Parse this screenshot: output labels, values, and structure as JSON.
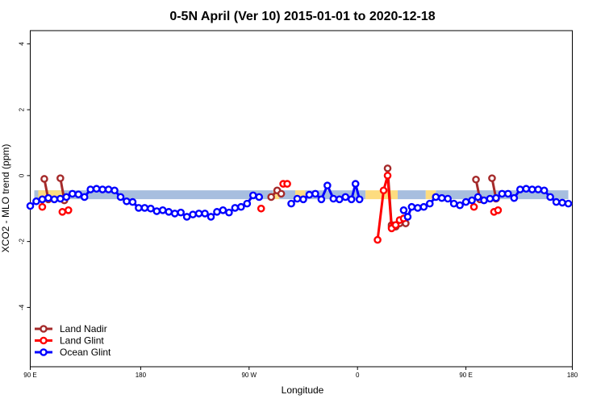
{
  "chart_data": {
    "type": "line",
    "title": "0-5N April (Ver 10)   2015-01-01 to 2020-12-18",
    "xlabel": "Longitude",
    "ylabel": "XCO2 - MLO trend (ppm)",
    "xlim": [
      -90,
      180
    ],
    "ylim": [
      -5.8,
      4.4
    ],
    "x_ticks": [
      {
        "value": -90,
        "label": "90 E"
      },
      {
        "value": -35,
        "label": "180"
      },
      {
        "value": 19,
        "label": "90 W"
      },
      {
        "value": 73,
        "label": "0"
      },
      {
        "value": 127,
        "label": "90 E"
      },
      {
        "value": 180,
        "label": "180"
      }
    ],
    "y_ticks": [
      -4,
      -2,
      0,
      2,
      4
    ],
    "grid": false,
    "legend_position": "bottom-left",
    "bands": [
      {
        "color": "#a7bedf",
        "segments": [
          [
            -88,
            -0.58,
            31,
            -0.58
          ],
          [
            34,
            -0.58,
            42,
            -0.58
          ],
          [
            47,
            -0.58,
            77,
            -0.58
          ],
          [
            93,
            -0.58,
            107,
            -0.58
          ],
          [
            112,
            -0.58,
            178,
            -0.58
          ]
        ]
      },
      {
        "color": "#fddc7f",
        "segments": [
          [
            -86,
            -0.58,
            -74,
            -0.58
          ],
          [
            31,
            -0.58,
            34,
            -0.58
          ],
          [
            42,
            -0.58,
            47,
            -0.58
          ],
          [
            77,
            -0.58,
            93,
            -0.58
          ],
          [
            107,
            -0.58,
            112,
            -0.58
          ]
        ]
      }
    ],
    "series": [
      {
        "name": "Land Nadir",
        "color": "#a52a2a",
        "segments": [
          [
            [
              -83,
              -0.1
            ],
            [
              -81,
              -0.72
            ]
          ],
          [
            [
              -75,
              -0.08
            ],
            [
              -73,
              -0.75
            ]
          ],
          [
            [
              30,
              -0.65
            ],
            [
              33,
              -0.45
            ],
            [
              35,
              -0.55
            ]
          ],
          [
            [
              88,
              0.22
            ],
            [
              90,
              -1.55
            ],
            [
              92,
              -1.55
            ]
          ],
          [
            [
              90,
              -1.5
            ],
            [
              94,
              -1.45
            ],
            [
              97,
              -1.45
            ]
          ],
          [
            [
              132,
              -0.12
            ],
            [
              134,
              -0.72
            ]
          ],
          [
            [
              140,
              -0.08
            ],
            [
              142,
              -0.7
            ]
          ]
        ]
      },
      {
        "name": "Land Glint",
        "color": "#ff0000",
        "segments": [
          [
            [
              -84,
              -0.95
            ]
          ],
          [
            [
              -74,
              -1.1
            ],
            [
              -71,
              -1.05
            ]
          ],
          [
            [
              25,
              -1.0
            ]
          ],
          [
            [
              36,
              -0.25
            ],
            [
              38,
              -0.25
            ]
          ],
          [
            [
              83,
              -1.95
            ],
            [
              86,
              -0.45
            ],
            [
              88,
              0.0
            ],
            [
              90,
              -1.6
            ],
            [
              92,
              -1.5
            ],
            [
              94,
              -1.35
            ],
            [
              96,
              -1.3
            ]
          ],
          [
            [
              131,
              -0.95
            ]
          ],
          [
            [
              141,
              -1.1
            ],
            [
              143,
              -1.05
            ]
          ]
        ]
      },
      {
        "name": "Ocean Glint",
        "color": "#0000ff",
        "segments": [
          [
            [
              -90,
              -0.92
            ],
            [
              -87,
              -0.78
            ],
            [
              -84,
              -0.72
            ],
            [
              -81,
              -0.68
            ],
            [
              -78,
              -0.72
            ],
            [
              -75,
              -0.7
            ],
            [
              -72,
              -0.65
            ],
            [
              -69,
              -0.55
            ],
            [
              -66,
              -0.57
            ],
            [
              -63,
              -0.65
            ],
            [
              -60,
              -0.42
            ],
            [
              -57,
              -0.4
            ],
            [
              -54,
              -0.42
            ],
            [
              -51,
              -0.42
            ],
            [
              -48,
              -0.45
            ],
            [
              -45,
              -0.65
            ],
            [
              -42,
              -0.78
            ],
            [
              -39,
              -0.8
            ],
            [
              -36,
              -0.98
            ],
            [
              -33,
              -0.98
            ],
            [
              -30,
              -1.0
            ],
            [
              -27,
              -1.08
            ],
            [
              -24,
              -1.05
            ],
            [
              -21,
              -1.1
            ],
            [
              -18,
              -1.15
            ],
            [
              -15,
              -1.12
            ],
            [
              -12,
              -1.25
            ],
            [
              -9,
              -1.18
            ],
            [
              -6,
              -1.15
            ],
            [
              -3,
              -1.15
            ],
            [
              0,
              -1.25
            ],
            [
              3,
              -1.1
            ],
            [
              6,
              -1.05
            ],
            [
              9,
              -1.12
            ],
            [
              12,
              -0.98
            ],
            [
              15,
              -0.95
            ],
            [
              18,
              -0.85
            ],
            [
              21,
              -0.6
            ],
            [
              24,
              -0.65
            ]
          ],
          [
            [
              40,
              -0.85
            ],
            [
              43,
              -0.7
            ],
            [
              46,
              -0.72
            ],
            [
              49,
              -0.58
            ],
            [
              52,
              -0.55
            ],
            [
              55,
              -0.72
            ],
            [
              58,
              -0.3
            ],
            [
              61,
              -0.7
            ],
            [
              64,
              -0.72
            ],
            [
              67,
              -0.65
            ],
            [
              70,
              -0.72
            ],
            [
              72,
              -0.25
            ],
            [
              74,
              -0.72
            ]
          ],
          [
            [
              96,
              -1.05
            ],
            [
              98,
              -1.25
            ],
            [
              100,
              -0.95
            ],
            [
              103,
              -0.98
            ],
            [
              106,
              -0.95
            ],
            [
              109,
              -0.85
            ],
            [
              112,
              -0.65
            ],
            [
              115,
              -0.68
            ],
            [
              118,
              -0.7
            ],
            [
              121,
              -0.85
            ],
            [
              124,
              -0.9
            ],
            [
              127,
              -0.8
            ],
            [
              130,
              -0.75
            ],
            [
              133,
              -0.65
            ],
            [
              136,
              -0.75
            ],
            [
              139,
              -0.7
            ],
            [
              142,
              -0.68
            ],
            [
              145,
              -0.55
            ],
            [
              148,
              -0.55
            ],
            [
              151,
              -0.68
            ],
            [
              154,
              -0.42
            ],
            [
              157,
              -0.4
            ],
            [
              160,
              -0.42
            ],
            [
              163,
              -0.42
            ],
            [
              166,
              -0.45
            ],
            [
              169,
              -0.65
            ],
            [
              172,
              -0.8
            ],
            [
              175,
              -0.82
            ],
            [
              178,
              -0.85
            ]
          ]
        ]
      }
    ]
  }
}
